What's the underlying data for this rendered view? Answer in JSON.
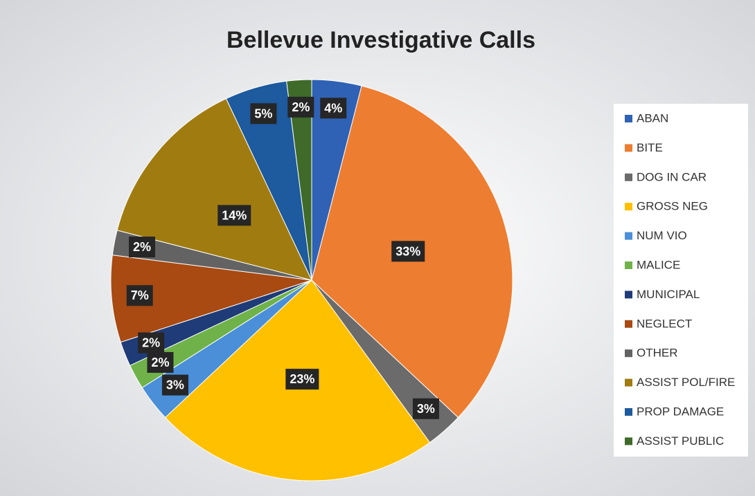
{
  "chart_data": {
    "type": "pie",
    "title": "Bellevue Investigative Calls",
    "categories": [
      "ABAN",
      "BITE",
      "DOG IN CAR",
      "GROSS NEG",
      "NUM VIO",
      "MALICE",
      "MUNICIPAL",
      "NEGLECT",
      "OTHER",
      "ASSIST POL/FIRE",
      "PROP DAMAGE",
      "ASSIST PUBLIC"
    ],
    "values": [
      4,
      33,
      3,
      23,
      3,
      2,
      2,
      7,
      2,
      14,
      5,
      2
    ],
    "value_labels": [
      "4%",
      "33%",
      "3%",
      "23%",
      "3%",
      "2%",
      "2%",
      "7%",
      "2%",
      "14%",
      "5%",
      "2%"
    ],
    "colors": [
      "#2f62b5",
      "#ed7d31",
      "#6b6b6b",
      "#ffc000",
      "#4a8fd8",
      "#6fb24a",
      "#1f3c78",
      "#a84a12",
      "#636363",
      "#a07c10",
      "#1d5a9e",
      "#3f6a2a"
    ],
    "legend": "right"
  }
}
